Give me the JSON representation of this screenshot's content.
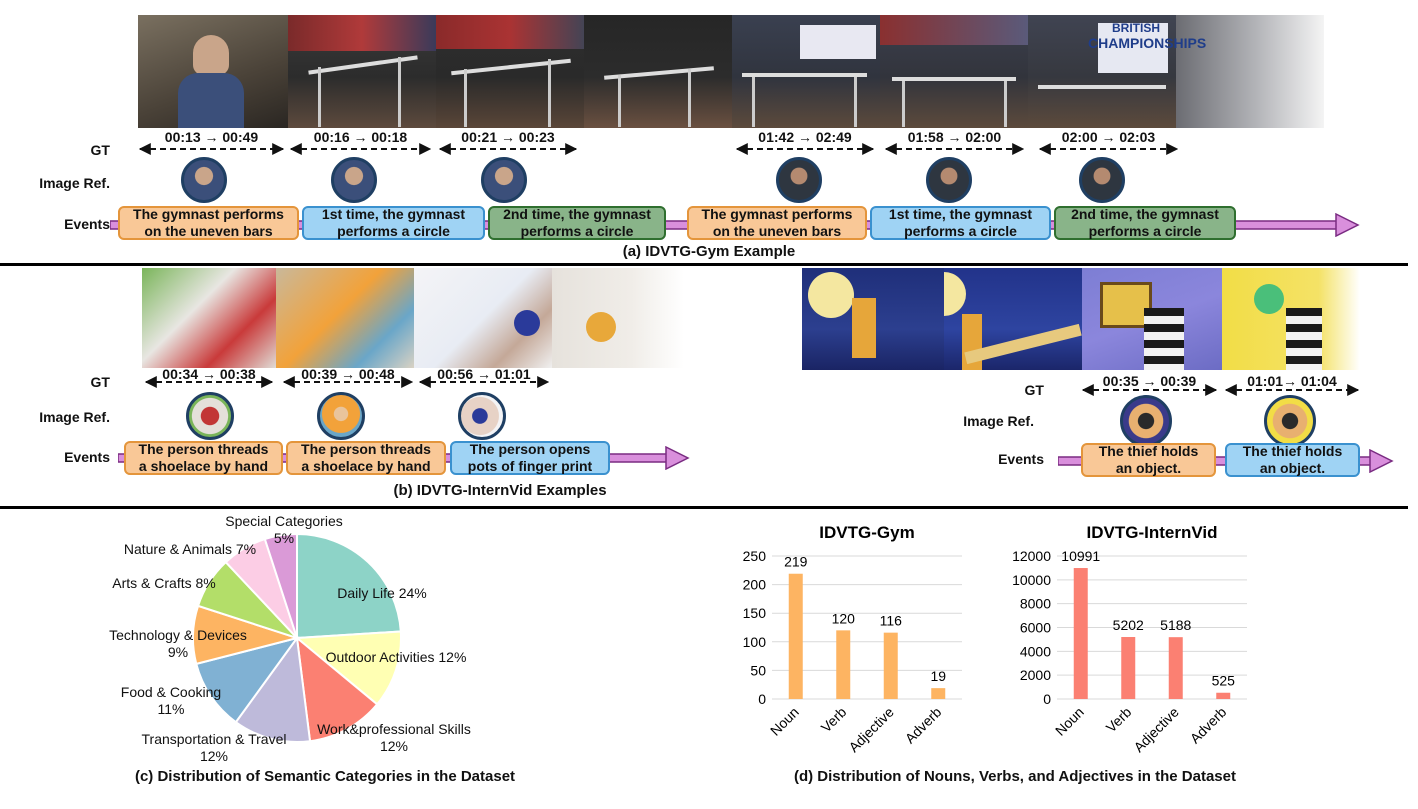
{
  "panel_a": {
    "row_labels": {
      "gt": "GT",
      "image_ref": "Image Ref.",
      "events": "Events"
    },
    "gt_times": [
      "00:13 → 00:49",
      "00:16 → 00:18",
      "00:21 → 00:23",
      "01:42 → 02:49",
      "01:58 → 02:00",
      "02:00 → 02:03"
    ],
    "events": [
      {
        "line1": "The gymnast performs",
        "line2": "on the uneven bars",
        "color": "orange"
      },
      {
        "line1": "1st time, the gymnast",
        "line2": "performs a circle",
        "color": "blue"
      },
      {
        "line1": "2nd time, the gymnast",
        "line2": "performs a circle",
        "color": "green"
      },
      {
        "line1": "The gymnast performs",
        "line2": "on the uneven bars",
        "color": "orange"
      },
      {
        "line1": "1st time, the gymnast",
        "line2": "performs a circle",
        "color": "blue"
      },
      {
        "line1": "2nd time, the gymnast",
        "line2": "performs a circle",
        "color": "green"
      }
    ],
    "frame_text": {
      "line1": "BRITISH",
      "line2": "CHAMPIONSHIPS"
    },
    "caption": "(a)  IDVTG-Gym Example"
  },
  "panel_b": {
    "left": {
      "row_labels": {
        "gt": "GT",
        "image_ref": "Image Ref.",
        "events": "Events"
      },
      "gt_times": [
        "00:34 → 00:38",
        "00:39 → 00:48",
        "00:56 → 01:01"
      ],
      "events": [
        {
          "line1": "The person threads",
          "line2": "a shoelace by hand",
          "color": "orange"
        },
        {
          "line1": "The person threads",
          "line2": "a shoelace by hand",
          "color": "orange"
        },
        {
          "line1": "The person opens",
          "line2": "pots of finger print",
          "color": "blue"
        }
      ]
    },
    "right": {
      "row_labels": {
        "gt": "GT",
        "image_ref": "Image Ref.",
        "events": "Events"
      },
      "gt_times": [
        "00:35 → 00:39",
        "01:01→ 01:04"
      ],
      "events": [
        {
          "line1": "The thief  holds",
          "line2": "an object.",
          "color": "orange"
        },
        {
          "line1": "The thief  holds",
          "line2": "an object.",
          "color": "blue"
        }
      ]
    },
    "caption": "(b) IDVTG-InternVid Examples"
  },
  "panel_c": {
    "caption": "(c) Distribution of Semantic Categories in the Dataset",
    "chart_data": {
      "type": "pie",
      "slices": [
        {
          "label": "Daily Life 24%",
          "value": 24,
          "color": "#8dd3c7"
        },
        {
          "label": "Outdoor Activities 12%",
          "value": 12,
          "color": "#ffffb3"
        },
        {
          "label": "Work&professional Skills 12%",
          "value": 12,
          "color": "#fb8072"
        },
        {
          "label": "Transportation & Travel 12%",
          "value": 12,
          "color": "#bebada"
        },
        {
          "label": "Food & Cooking 11%",
          "value": 11,
          "color": "#80b1d3"
        },
        {
          "label": "Technology & Devices 9%",
          "value": 9,
          "color": "#fdb462"
        },
        {
          "label": "Arts & Crafts 8%",
          "value": 8,
          "color": "#b3de69"
        },
        {
          "label": "Nature & Animals 7%",
          "value": 7,
          "color": "#fccde5"
        },
        {
          "label": "Special Categories 5%",
          "value": 5,
          "color": "#da9ad7"
        }
      ]
    }
  },
  "panel_d": {
    "caption": "(d) Distribution of Nouns, Verbs, and Adjectives in the Dataset",
    "chart_data": [
      {
        "type": "bar",
        "title": "IDVTG-Gym",
        "categories": [
          "Noun",
          "Verb",
          "Adjective",
          "Adverb"
        ],
        "values": [
          219,
          120,
          116,
          19
        ],
        "ylim": [
          0,
          250
        ],
        "yticks": [
          0,
          50,
          100,
          150,
          200,
          250
        ],
        "color": "#fdb462"
      },
      {
        "type": "bar",
        "title": "IDVTG-InternVid",
        "categories": [
          "Noun",
          "Verb",
          "Adjective",
          "Adverb"
        ],
        "values": [
          10991,
          5202,
          5188,
          525
        ],
        "ylim": [
          0,
          12000
        ],
        "yticks": [
          0,
          2000,
          4000,
          6000,
          8000,
          10000,
          12000
        ],
        "color": "#fb8072"
      }
    ]
  }
}
